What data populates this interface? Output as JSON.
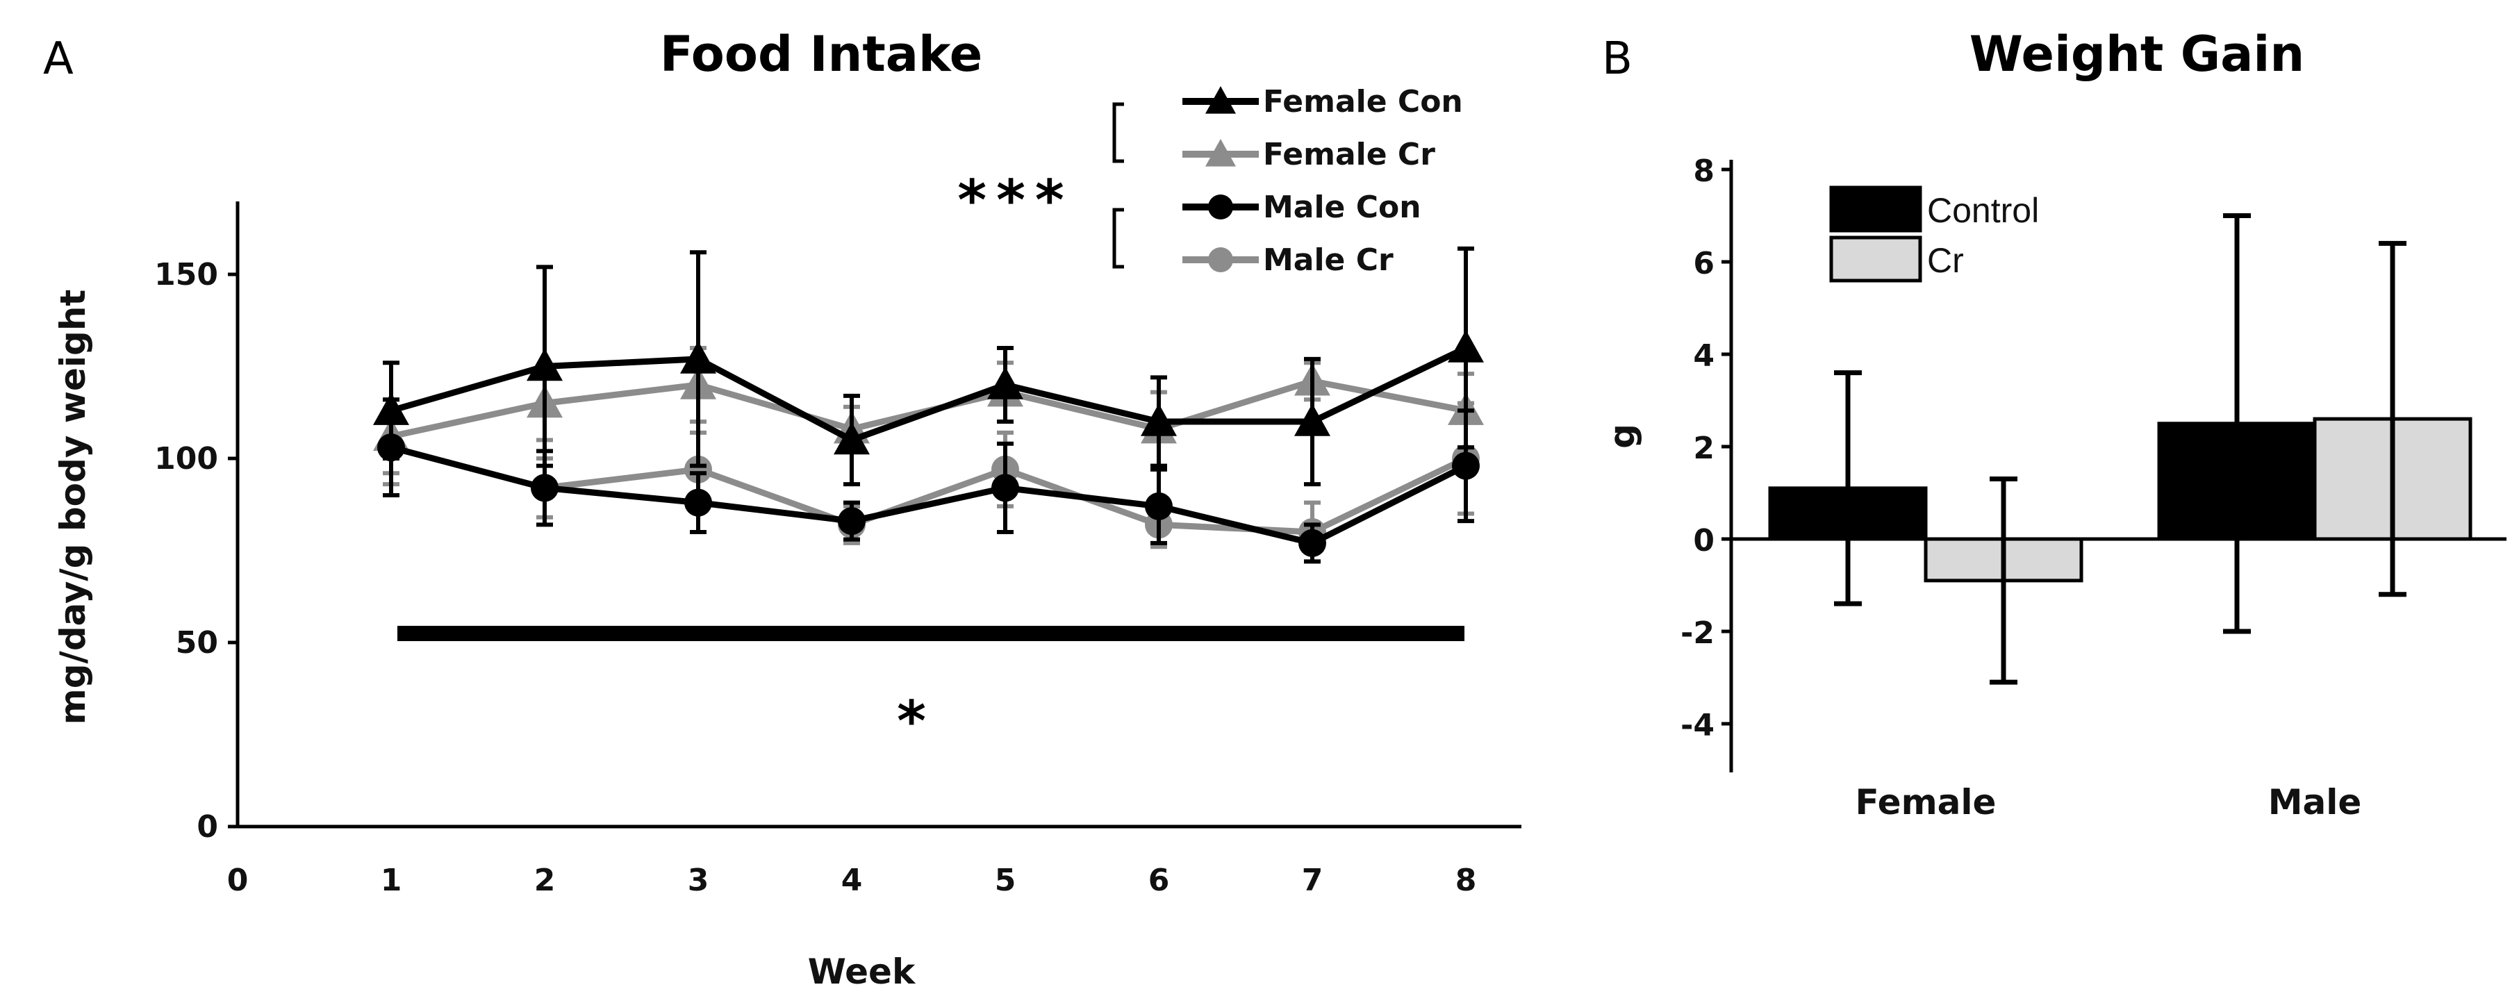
{
  "panel_a": {
    "letter": "A",
    "significance_top": "***",
    "significance_bottom": "*"
  },
  "panel_b": {
    "letter": "B"
  },
  "chart_data": [
    {
      "type": "line",
      "title": "Food Intake",
      "xlabel": "Week",
      "ylabel": "mg/day/g body weight",
      "xlim": [
        0,
        8.75
      ],
      "ylim": [
        0,
        170
      ],
      "xticks": [
        0,
        1,
        2,
        3,
        4,
        5,
        6,
        7,
        8
      ],
      "yticks": [
        0,
        50,
        100,
        150
      ],
      "x": [
        1,
        2,
        3,
        4,
        5,
        6,
        7,
        8
      ],
      "legend_position": "top-right",
      "series": [
        {
          "name": "Female Con",
          "marker": "triangle",
          "color": "#000000",
          "values": [
            113,
            125,
            127,
            105,
            120,
            110,
            110,
            130
          ],
          "errors": [
            13,
            27,
            29,
            12,
            10,
            12,
            17,
            27
          ]
        },
        {
          "name": "Female Cr",
          "marker": "triangle",
          "color": "#8c8c8c",
          "values": [
            106,
            115,
            120,
            108,
            118,
            108,
            121,
            113
          ],
          "errors": [
            10,
            10,
            10,
            6,
            8,
            10,
            5,
            10
          ]
        },
        {
          "name": "Male Con",
          "marker": "circle",
          "color": "#000000",
          "values": [
            103,
            92,
            88,
            83,
            92,
            87,
            77,
            98
          ],
          "errors": [
            13,
            10,
            8,
            5,
            12,
            10,
            5,
            15
          ]
        },
        {
          "name": "Male Cr",
          "marker": "circle",
          "color": "#8c8c8c",
          "values": [
            103,
            92,
            97,
            82,
            97,
            82,
            80,
            100
          ],
          "errors": [
            10,
            8,
            10,
            5,
            10,
            6,
            8,
            15
          ]
        }
      ]
    },
    {
      "type": "bar",
      "title": "Weight Gain",
      "xlabel": "",
      "ylabel": "g",
      "ylim": [
        -5,
        8
      ],
      "yticks": [
        -4,
        -2,
        0,
        2,
        4,
        6,
        8
      ],
      "categories": [
        "Female",
        "Male"
      ],
      "legend_position": "top-left",
      "series": [
        {
          "name": "Control",
          "color": "#000000",
          "values": [
            1.1,
            2.5
          ],
          "errors": [
            2.5,
            4.5
          ]
        },
        {
          "name": "Cr",
          "color": "#d9d9d9",
          "values": [
            -0.9,
            2.6
          ],
          "errors": [
            2.2,
            3.8
          ]
        }
      ]
    }
  ]
}
